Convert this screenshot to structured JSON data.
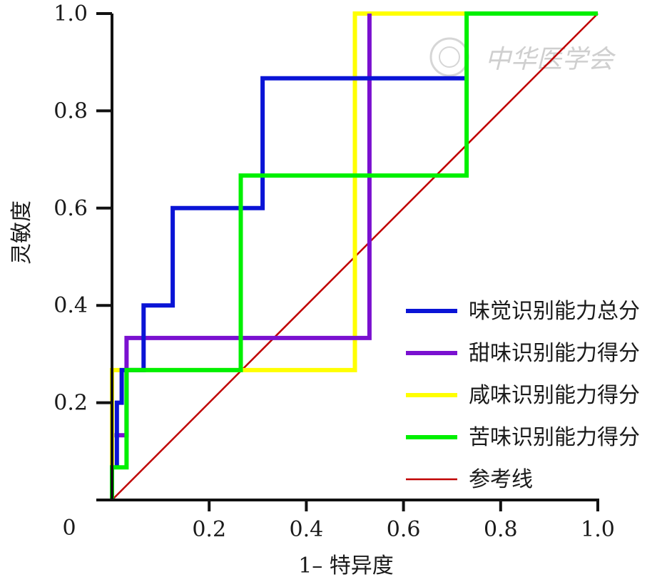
{
  "chart_data": {
    "type": "line",
    "title": "",
    "xlabel": "1– 特异度",
    "ylabel": "灵敏度",
    "xlim": [
      0,
      1
    ],
    "ylim": [
      0,
      1
    ],
    "origin_label": "0",
    "x_ticks": [
      {
        "value": 0.2,
        "label": "0.2"
      },
      {
        "value": 0.4,
        "label": "0.4"
      },
      {
        "value": 0.6,
        "label": "0.6"
      },
      {
        "value": 0.8,
        "label": "0.8"
      },
      {
        "value": 1.0,
        "label": "1.0"
      }
    ],
    "y_ticks": [
      {
        "value": 0.2,
        "label": "0.2"
      },
      {
        "value": 0.4,
        "label": "0.4"
      },
      {
        "value": 0.6,
        "label": "0.6"
      },
      {
        "value": 0.8,
        "label": "0.8"
      },
      {
        "value": 1.0,
        "label": "1.0"
      }
    ],
    "grid": false,
    "legend_position": "bottom-right",
    "watermark": "中华医学会",
    "series": [
      {
        "name": "味觉识别能力总分",
        "color": "#0a14d6",
        "points": [
          [
            0.01,
            0.067
          ],
          [
            0.01,
            0.2
          ],
          [
            0.02,
            0.2
          ],
          [
            0.02,
            0.267
          ],
          [
            0.065,
            0.267
          ],
          [
            0.065,
            0.4
          ],
          [
            0.125,
            0.4
          ],
          [
            0.125,
            0.6
          ],
          [
            0.31,
            0.6
          ],
          [
            0.31,
            0.867
          ],
          [
            0.73,
            0.867
          ]
        ]
      },
      {
        "name": "甜味识别能力得分",
        "color": "#7a10d0",
        "points": [
          [
            0.005,
            0.133
          ],
          [
            0.03,
            0.133
          ],
          [
            0.03,
            0.333
          ],
          [
            0.53,
            0.333
          ],
          [
            0.53,
            1.0
          ]
        ]
      },
      {
        "name": "咸味识别能力得分",
        "color": "#ffff00",
        "points": [
          [
            0,
            0
          ],
          [
            0,
            0.267
          ],
          [
            0.5,
            0.267
          ],
          [
            0.5,
            1.0
          ],
          [
            0.73,
            1.0
          ]
        ]
      },
      {
        "name": "苦味识别能力得分",
        "color": "#00f000",
        "points": [
          [
            0,
            0
          ],
          [
            0,
            0.067
          ],
          [
            0.03,
            0.067
          ],
          [
            0.03,
            0.267
          ],
          [
            0.265,
            0.267
          ],
          [
            0.265,
            0.667
          ],
          [
            0.73,
            0.667
          ],
          [
            0.73,
            1.0
          ],
          [
            1.0,
            1.0
          ]
        ]
      },
      {
        "name": "参考线",
        "color": "#c00000",
        "reference": true,
        "points": [
          [
            0,
            0
          ],
          [
            1,
            1
          ]
        ]
      }
    ]
  }
}
